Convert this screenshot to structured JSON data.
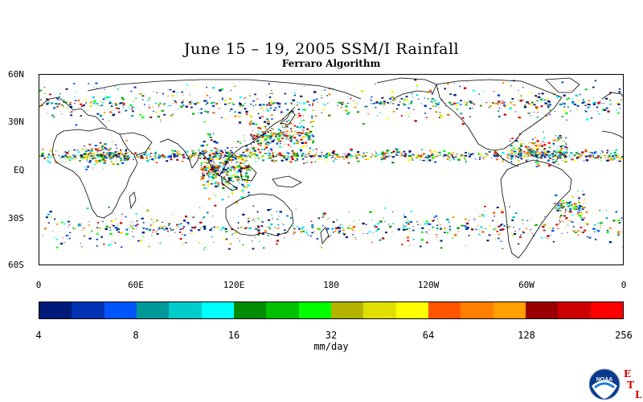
{
  "header": {
    "title": "June 15 – 19, 2005 SSM/I Rainfall",
    "subtitle": "Ferraro Algorithm"
  },
  "map": {
    "lat_labels": [
      "60N",
      "30N",
      "EQ",
      "30S",
      "60S"
    ],
    "lon_labels": [
      "0",
      "60E",
      "120E",
      "180",
      "120W",
      "60W",
      "0"
    ],
    "colors": {
      "coastline": "#000000",
      "background": "#ffffff"
    }
  },
  "colorbar": {
    "colors": [
      "#001a7a",
      "#0033b3",
      "#0055ff",
      "#009999",
      "#00cccc",
      "#00ffff",
      "#008c00",
      "#00c000",
      "#00ff00",
      "#b3b300",
      "#e0e000",
      "#ffff00",
      "#ff5500",
      "#ff8000",
      "#ffa000",
      "#990000",
      "#cc0000",
      "#ff0000"
    ],
    "tick_labels": [
      "4",
      "8",
      "16",
      "32",
      "64",
      "128",
      "256"
    ],
    "units": "mm/day"
  },
  "logo": {
    "icon": "noaa-logo-icon",
    "text": "NOAA",
    "letters": [
      "E",
      "T",
      "L"
    ]
  }
}
